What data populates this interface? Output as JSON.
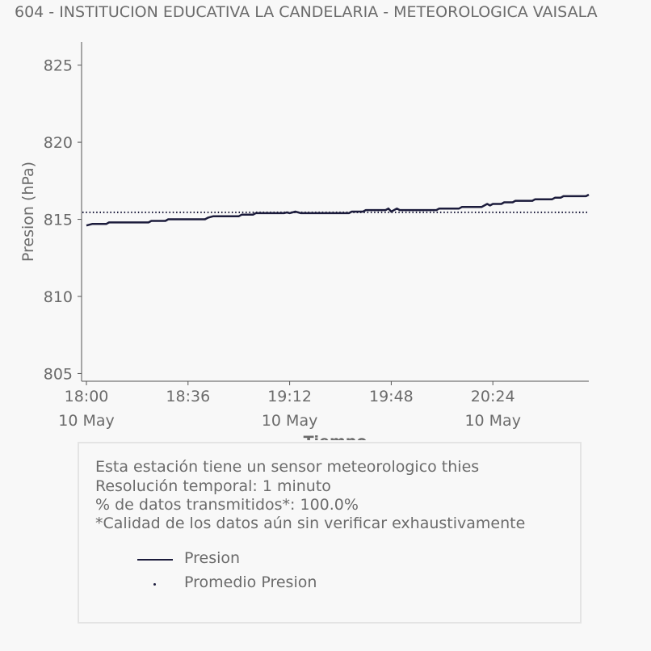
{
  "title": "604 - INSTITUCION EDUCATIVA LA CANDELARIA - METEOROLOGICA VAISALA",
  "chart_data": {
    "type": "line",
    "ylabel": "Presion (hPa)",
    "xlabel": "Tiempo",
    "ylim": [
      804.5,
      826.5
    ],
    "yticks": [
      805,
      810,
      815,
      820,
      825
    ],
    "xlim_minutes": [
      0,
      178
    ],
    "xticks": [
      {
        "minute": 0,
        "time": "18:00",
        "date": "10 May"
      },
      {
        "minute": 36,
        "time": "18:36",
        "date": ""
      },
      {
        "minute": 72,
        "time": "19:12",
        "date": "10 May"
      },
      {
        "minute": 108,
        "time": "19:48",
        "date": ""
      },
      {
        "minute": 144,
        "time": "20:24",
        "date": "10 May"
      }
    ],
    "series": [
      {
        "name": "Presion",
        "color": "#1c1c3c",
        "style": "solid",
        "points": [
          [
            0,
            814.6
          ],
          [
            2,
            814.7
          ],
          [
            7,
            814.7
          ],
          [
            8,
            814.8
          ],
          [
            22,
            814.8
          ],
          [
            23,
            814.9
          ],
          [
            28,
            814.9
          ],
          [
            29,
            815.0
          ],
          [
            42,
            815.0
          ],
          [
            43,
            815.1
          ],
          [
            45,
            815.2
          ],
          [
            54,
            815.2
          ],
          [
            55,
            815.3
          ],
          [
            59,
            815.3
          ],
          [
            60,
            815.4
          ],
          [
            70,
            815.4
          ],
          [
            71,
            815.45
          ],
          [
            72,
            815.4
          ],
          [
            74,
            815.5
          ],
          [
            76,
            815.4
          ],
          [
            93,
            815.4
          ],
          [
            94,
            815.5
          ],
          [
            98,
            815.5
          ],
          [
            99,
            815.6
          ],
          [
            106,
            815.6
          ],
          [
            107,
            815.7
          ],
          [
            108,
            815.5
          ],
          [
            110,
            815.7
          ],
          [
            111,
            815.6
          ],
          [
            124,
            815.6
          ],
          [
            125,
            815.7
          ],
          [
            132,
            815.7
          ],
          [
            133,
            815.8
          ],
          [
            140,
            815.8
          ],
          [
            142,
            816.0
          ],
          [
            143,
            815.9
          ],
          [
            144,
            816.0
          ],
          [
            147,
            816.0
          ],
          [
            148,
            816.1
          ],
          [
            151,
            816.1
          ],
          [
            152,
            816.2
          ],
          [
            158,
            816.2
          ],
          [
            159,
            816.3
          ],
          [
            165,
            816.3
          ],
          [
            166,
            816.4
          ],
          [
            168,
            816.4
          ],
          [
            169,
            816.5
          ],
          [
            177,
            816.5
          ],
          [
            178,
            816.6
          ]
        ]
      },
      {
        "name": "Promedio Presion",
        "color": "#1c1c3c",
        "style": "dotted",
        "value": 815.45
      }
    ]
  },
  "info": {
    "lines": [
      "Esta estación tiene un sensor meteorologico thies",
      "Resolución temporal: 1 minuto",
      "% de datos transmitidos*: 100.0%",
      "*Calidad de los datos aún sin verificar exhaustivamente"
    ],
    "legend": [
      {
        "label": "Presion"
      },
      {
        "label": "Promedio Presion"
      }
    ]
  }
}
